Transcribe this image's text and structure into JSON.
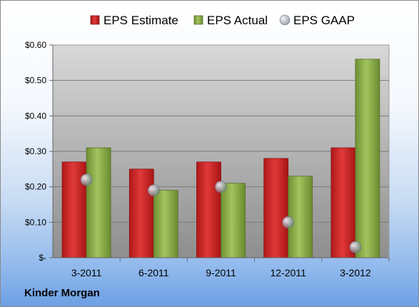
{
  "company": "Kinder Morgan",
  "colors": {
    "estimate": "#d42a2a",
    "actual": "#8fb04a",
    "gaap": "#b8bec8"
  },
  "chart_data": {
    "type": "bar",
    "categories": [
      "3-2011",
      "6-2011",
      "9-2011",
      "12-2011",
      "3-2012"
    ],
    "series": [
      {
        "name": "EPS Estimate",
        "kind": "bar",
        "values": [
          0.27,
          0.25,
          0.27,
          0.28,
          0.31
        ]
      },
      {
        "name": "EPS Actual",
        "kind": "bar",
        "values": [
          0.31,
          0.19,
          0.21,
          0.23,
          0.56
        ]
      },
      {
        "name": "EPS GAAP",
        "kind": "marker",
        "values": [
          0.22,
          0.19,
          0.2,
          0.1,
          0.03
        ]
      }
    ],
    "y_ticks": [
      0,
      0.1,
      0.2,
      0.3,
      0.4,
      0.5,
      0.6
    ],
    "y_tick_labels": [
      "$-",
      "$0.10",
      "$0.20",
      "$0.30",
      "$0.40",
      "$0.50",
      "$0.60"
    ],
    "ylim": [
      0,
      0.6
    ],
    "grid": true,
    "legend_position": "top"
  }
}
